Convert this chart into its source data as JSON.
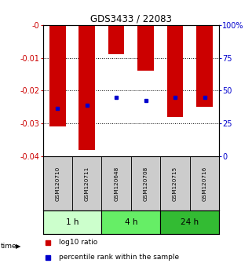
{
  "title": "GDS3433 / 22083",
  "samples": [
    "GSM120710",
    "GSM120711",
    "GSM120648",
    "GSM120708",
    "GSM120715",
    "GSM120716"
  ],
  "groups": [
    {
      "label": "1 h",
      "indices": [
        0,
        1
      ],
      "color": "#ccffcc"
    },
    {
      "label": "4 h",
      "indices": [
        2,
        3
      ],
      "color": "#66ee66"
    },
    {
      "label": "24 h",
      "indices": [
        4,
        5
      ],
      "color": "#33bb33"
    }
  ],
  "log10_ratio": [
    -0.031,
    -0.038,
    -0.009,
    -0.014,
    -0.028,
    -0.025
  ],
  "percentile_y": [
    -0.0255,
    -0.0245,
    -0.022,
    -0.023,
    -0.022,
    -0.022
  ],
  "ylim_left": [
    -0.04,
    0.0
  ],
  "ylim_right": [
    0,
    100
  ],
  "yticks_left": [
    -0.04,
    -0.03,
    -0.02,
    -0.01,
    0.0
  ],
  "ytick_labels_left": [
    "-0.04",
    "-0.03",
    "-0.02",
    "-0.01",
    "-0"
  ],
  "yticks_right": [
    0,
    25,
    50,
    75,
    100
  ],
  "ytick_labels_right": [
    "0",
    "25",
    "50",
    "75",
    "100%"
  ],
  "bar_color": "#cc0000",
  "dot_color": "#0000cc",
  "bar_width": 0.55,
  "time_label": "time",
  "legend_log10": "log10 ratio",
  "legend_pct": "percentile rank within the sample",
  "grid_yticks": [
    -0.01,
    -0.02,
    -0.03
  ]
}
